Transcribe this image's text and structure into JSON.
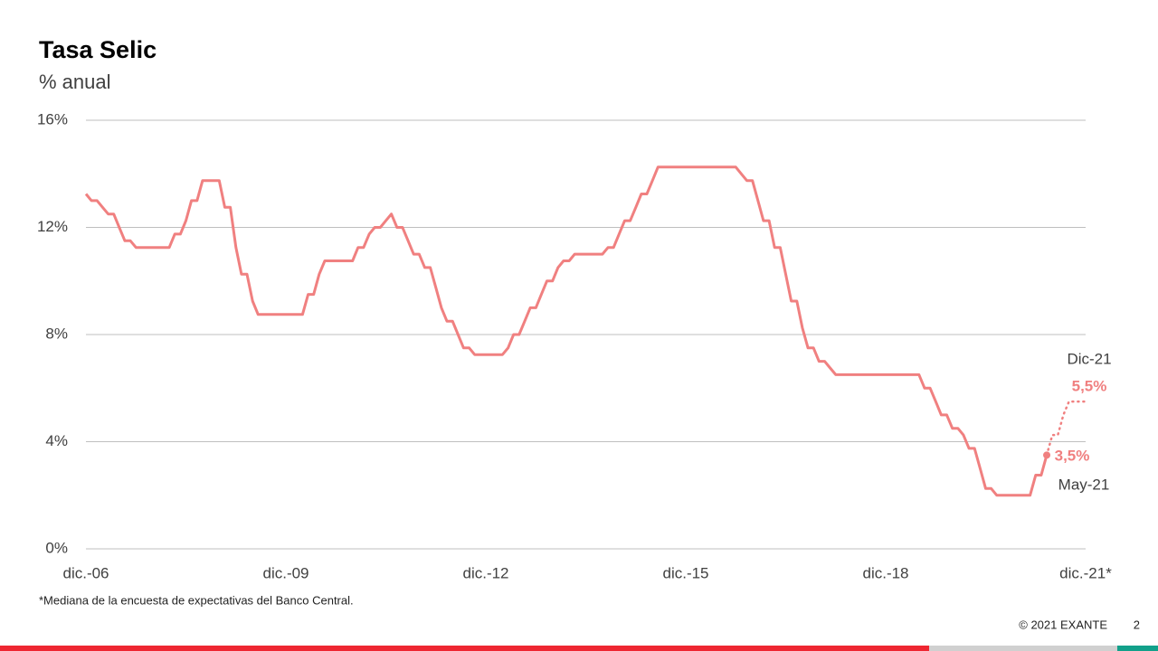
{
  "chart_data": {
    "type": "line",
    "title": "Tasa Selic",
    "subtitle": "% anual",
    "x": [
      "2006-12",
      "2007-01",
      "2007-02",
      "2007-03",
      "2007-04",
      "2007-05",
      "2007-06",
      "2007-07",
      "2007-08",
      "2007-09",
      "2007-10",
      "2007-11",
      "2007-12",
      "2008-01",
      "2008-02",
      "2008-03",
      "2008-04",
      "2008-05",
      "2008-06",
      "2008-07",
      "2008-08",
      "2008-09",
      "2008-10",
      "2008-11",
      "2008-12",
      "2009-01",
      "2009-02",
      "2009-03",
      "2009-04",
      "2009-05",
      "2009-06",
      "2009-07",
      "2009-08",
      "2009-09",
      "2009-10",
      "2009-11",
      "2009-12",
      "2010-01",
      "2010-02",
      "2010-03",
      "2010-04",
      "2010-05",
      "2010-06",
      "2010-07",
      "2010-08",
      "2010-09",
      "2010-10",
      "2010-11",
      "2010-12",
      "2011-01",
      "2011-02",
      "2011-03",
      "2011-04",
      "2011-05",
      "2011-06",
      "2011-07",
      "2011-08",
      "2011-09",
      "2011-10",
      "2011-11",
      "2011-12",
      "2012-01",
      "2012-02",
      "2012-03",
      "2012-04",
      "2012-05",
      "2012-06",
      "2012-07",
      "2012-08",
      "2012-09",
      "2012-10",
      "2012-11",
      "2012-12",
      "2013-01",
      "2013-02",
      "2013-03",
      "2013-04",
      "2013-05",
      "2013-06",
      "2013-07",
      "2013-08",
      "2013-09",
      "2013-10",
      "2013-11",
      "2013-12",
      "2014-01",
      "2014-02",
      "2014-03",
      "2014-04",
      "2014-05",
      "2014-06",
      "2014-07",
      "2014-08",
      "2014-09",
      "2014-10",
      "2014-11",
      "2014-12",
      "2015-01",
      "2015-02",
      "2015-03",
      "2015-04",
      "2015-05",
      "2015-06",
      "2015-07",
      "2015-08",
      "2015-09",
      "2015-10",
      "2015-11",
      "2015-12",
      "2016-01",
      "2016-02",
      "2016-03",
      "2016-04",
      "2016-05",
      "2016-06",
      "2016-07",
      "2016-08",
      "2016-09",
      "2016-10",
      "2016-11",
      "2016-12",
      "2017-01",
      "2017-02",
      "2017-03",
      "2017-04",
      "2017-05",
      "2017-06",
      "2017-07",
      "2017-08",
      "2017-09",
      "2017-10",
      "2017-11",
      "2017-12",
      "2018-01",
      "2018-02",
      "2018-03",
      "2018-04",
      "2018-05",
      "2018-06",
      "2018-07",
      "2018-08",
      "2018-09",
      "2018-10",
      "2018-11",
      "2018-12",
      "2019-01",
      "2019-02",
      "2019-03",
      "2019-04",
      "2019-05",
      "2019-06",
      "2019-07",
      "2019-08",
      "2019-09",
      "2019-10",
      "2019-11",
      "2019-12",
      "2020-01",
      "2020-02",
      "2020-03",
      "2020-04",
      "2020-05",
      "2020-06",
      "2020-07",
      "2020-08",
      "2020-09",
      "2020-10",
      "2020-11",
      "2020-12",
      "2021-01",
      "2021-02",
      "2021-03",
      "2021-04",
      "2021-05"
    ],
    "series": [
      {
        "color": "#f08080",
        "values": [
          13.25,
          13,
          13,
          12.75,
          12.5,
          12.5,
          12,
          11.5,
          11.5,
          11.25,
          11.25,
          11.25,
          11.25,
          11.25,
          11.25,
          11.25,
          11.75,
          11.75,
          12.25,
          13,
          13,
          13.75,
          13.75,
          13.75,
          13.75,
          12.75,
          12.75,
          11.25,
          10.25,
          10.25,
          9.25,
          8.75,
          8.75,
          8.75,
          8.75,
          8.75,
          8.75,
          8.75,
          8.75,
          8.75,
          9.5,
          9.5,
          10.25,
          10.75,
          10.75,
          10.75,
          10.75,
          10.75,
          10.75,
          11.25,
          11.25,
          11.75,
          12,
          12,
          12.25,
          12.5,
          12,
          12,
          11.5,
          11,
          11,
          10.5,
          10.5,
          9.75,
          9,
          8.5,
          8.5,
          8,
          7.5,
          7.5,
          7.25,
          7.25,
          7.25,
          7.25,
          7.25,
          7.25,
          7.5,
          8,
          8,
          8.5,
          9,
          9,
          9.5,
          10,
          10,
          10.5,
          10.75,
          10.75,
          11,
          11,
          11,
          11,
          11,
          11,
          11.25,
          11.25,
          11.75,
          12.25,
          12.25,
          12.75,
          13.25,
          13.25,
          13.75,
          14.25,
          14.25,
          14.25,
          14.25,
          14.25,
          14.25,
          14.25,
          14.25,
          14.25,
          14.25,
          14.25,
          14.25,
          14.25,
          14.25,
          14.25,
          14,
          13.75,
          13.75,
          13,
          12.25,
          12.25,
          11.25,
          11.25,
          10.25,
          9.25,
          9.25,
          8.25,
          7.5,
          7.5,
          7,
          7,
          6.75,
          6.5,
          6.5,
          6.5,
          6.5,
          6.5,
          6.5,
          6.5,
          6.5,
          6.5,
          6.5,
          6.5,
          6.5,
          6.5,
          6.5,
          6.5,
          6.5,
          6,
          6,
          5.5,
          5,
          5,
          4.5,
          4.5,
          4.25,
          3.75,
          3.75,
          3,
          2.25,
          2.25,
          2,
          2,
          2,
          2,
          2,
          2,
          2,
          2.75,
          2.75,
          3.5
        ]
      }
    ],
    "forecast": {
      "color": "#f08080",
      "dashed": true,
      "x": [
        "2021-05",
        "2021-06",
        "2021-07",
        "2021-08",
        "2021-09",
        "2021-10",
        "2021-11",
        "2021-12"
      ],
      "values": [
        3.5,
        4.25,
        4.25,
        5,
        5.5,
        5.5,
        5.5,
        5.5
      ]
    },
    "annotations": [
      "Dic-21",
      "5,5%",
      "3,5%",
      "May-21"
    ],
    "xlim": [
      "2006-12",
      "2021-12"
    ],
    "xticks": [
      {
        "value": "2006-12",
        "label": "dic.-06"
      },
      {
        "value": "2009-12",
        "label": "dic.-09"
      },
      {
        "value": "2012-12",
        "label": "dic.-12"
      },
      {
        "value": "2015-12",
        "label": "dic.-15"
      },
      {
        "value": "2018-12",
        "label": "dic.-18"
      },
      {
        "value": "2021-12",
        "label": "dic.-21*"
      }
    ],
    "ylim": [
      0,
      16
    ],
    "yticks": [
      {
        "value": 0,
        "label": "0%"
      },
      {
        "value": 4,
        "label": "4%"
      },
      {
        "value": 8,
        "label": "8%"
      },
      {
        "value": 12,
        "label": "12%"
      },
      {
        "value": 16,
        "label": "16%"
      }
    ],
    "grid": true,
    "footnote": "*Mediana de la encuesta de expectativas del Banco Central.",
    "copyright": "© 2021 EXANTE",
    "page_number": "2"
  }
}
